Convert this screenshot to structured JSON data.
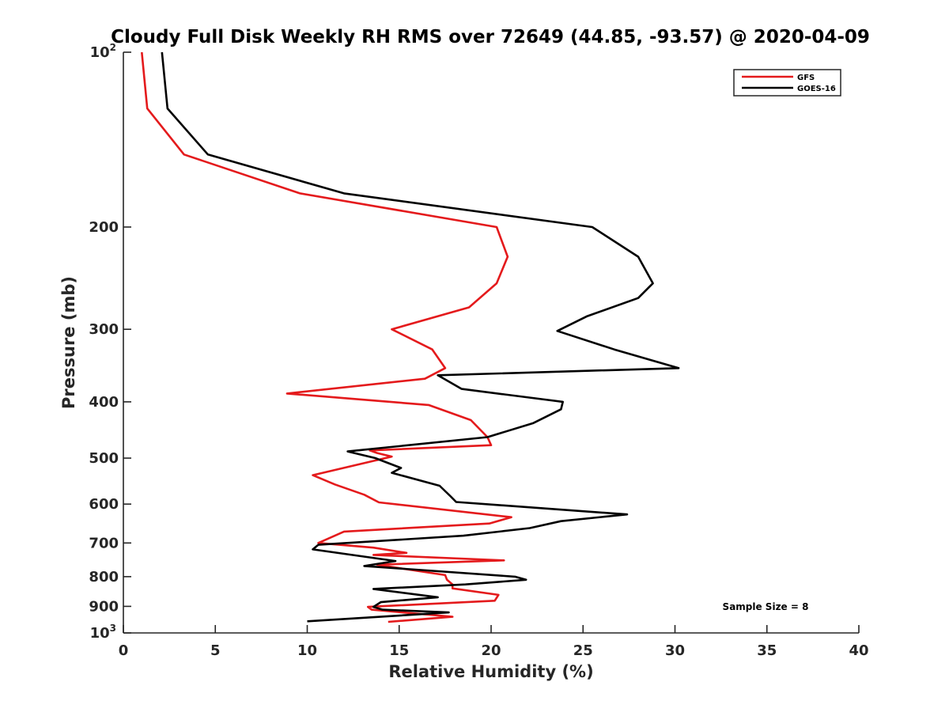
{
  "chart_data": {
    "type": "line",
    "title": "Cloudy Full Disk Weekly RH RMS over 72649 (44.85, -93.57) @ 2020-04-09",
    "xlabel": "Relative Humidity (%)",
    "ylabel": "Pressure (mb)",
    "xlim": [
      0,
      40
    ],
    "ylim": [
      100,
      1000
    ],
    "yscale": "log",
    "y_reversed": true,
    "grid": false,
    "x_ticks": [
      {
        "value": 0,
        "label": "0"
      },
      {
        "value": 5,
        "label": "5"
      },
      {
        "value": 10,
        "label": "10"
      },
      {
        "value": 15,
        "label": "15"
      },
      {
        "value": 20,
        "label": "20"
      },
      {
        "value": 25,
        "label": "25"
      },
      {
        "value": 30,
        "label": "30"
      },
      {
        "value": 35,
        "label": "35"
      },
      {
        "value": 40,
        "label": "40"
      }
    ],
    "y_ticks": [
      {
        "value": 100,
        "base": "10",
        "exp": "2"
      },
      {
        "value": 200,
        "label": "200"
      },
      {
        "value": 300,
        "label": "300"
      },
      {
        "value": 400,
        "label": "400"
      },
      {
        "value": 500,
        "label": "500"
      },
      {
        "value": 600,
        "label": "600"
      },
      {
        "value": 700,
        "label": "700"
      },
      {
        "value": 800,
        "label": "800"
      },
      {
        "value": 900,
        "label": "900"
      },
      {
        "value": 1000,
        "base": "10",
        "exp": "3"
      }
    ],
    "legend": {
      "position": "top-right"
    },
    "annotation": "Sample Size = 8",
    "series": [
      {
        "name": "GFS",
        "color": "#e41a1c",
        "points": [
          [
            1.0,
            100
          ],
          [
            1.3,
            125
          ],
          [
            3.3,
            150
          ],
          [
            9.6,
            175
          ],
          [
            20.3,
            200
          ],
          [
            20.9,
            225
          ],
          [
            20.3,
            250
          ],
          [
            18.8,
            275
          ],
          [
            14.6,
            300
          ],
          [
            16.8,
            325
          ],
          [
            17.5,
            350
          ],
          [
            16.4,
            365
          ],
          [
            8.9,
            387
          ],
          [
            16.6,
            405
          ],
          [
            18.9,
            430
          ],
          [
            19.8,
            460
          ],
          [
            20.0,
            475
          ],
          [
            13.4,
            485
          ],
          [
            13.8,
            490
          ],
          [
            14.6,
            497
          ],
          [
            10.3,
            535
          ],
          [
            11.5,
            555
          ],
          [
            13.1,
            578
          ],
          [
            13.9,
            596
          ],
          [
            21.1,
            632
          ],
          [
            19.9,
            648
          ],
          [
            12.0,
            669
          ],
          [
            10.6,
            700
          ],
          [
            13.6,
            713
          ],
          [
            15.4,
            728
          ],
          [
            13.6,
            734
          ],
          [
            20.7,
            750
          ],
          [
            13.8,
            763
          ],
          [
            17.5,
            795
          ],
          [
            17.6,
            810
          ],
          [
            17.9,
            825
          ],
          [
            17.9,
            838
          ],
          [
            20.4,
            860
          ],
          [
            20.2,
            880
          ],
          [
            13.3,
            902
          ],
          [
            13.5,
            912
          ],
          [
            17.9,
            938
          ],
          [
            14.4,
            957
          ]
        ]
      },
      {
        "name": "GOES-16",
        "color": "#000000",
        "points": [
          [
            2.1,
            100
          ],
          [
            2.4,
            125
          ],
          [
            4.6,
            150
          ],
          [
            12.0,
            175
          ],
          [
            25.5,
            200
          ],
          [
            28.0,
            225
          ],
          [
            28.8,
            250
          ],
          [
            28.0,
            265
          ],
          [
            25.2,
            285
          ],
          [
            23.6,
            302
          ],
          [
            26.7,
            325
          ],
          [
            30.2,
            350
          ],
          [
            17.1,
            360
          ],
          [
            18.4,
            380
          ],
          [
            23.9,
            400
          ],
          [
            23.8,
            412
          ],
          [
            22.3,
            435
          ],
          [
            19.8,
            460
          ],
          [
            12.2,
            487
          ],
          [
            13.7,
            500
          ],
          [
            15.1,
            520
          ],
          [
            14.6,
            530
          ],
          [
            17.2,
            558
          ],
          [
            17.8,
            582
          ],
          [
            18.1,
            595
          ],
          [
            27.4,
            625
          ],
          [
            23.8,
            642
          ],
          [
            22.1,
            660
          ],
          [
            18.5,
            680
          ],
          [
            10.6,
            705
          ],
          [
            10.3,
            718
          ],
          [
            14.8,
            752
          ],
          [
            13.1,
            767
          ],
          [
            21.3,
            800
          ],
          [
            21.9,
            810
          ],
          [
            18.6,
            825
          ],
          [
            13.6,
            840
          ],
          [
            17.1,
            868
          ],
          [
            14.0,
            885
          ],
          [
            13.6,
            902
          ],
          [
            14.1,
            912
          ],
          [
            17.7,
            922
          ],
          [
            10.0,
            955
          ]
        ]
      }
    ]
  }
}
